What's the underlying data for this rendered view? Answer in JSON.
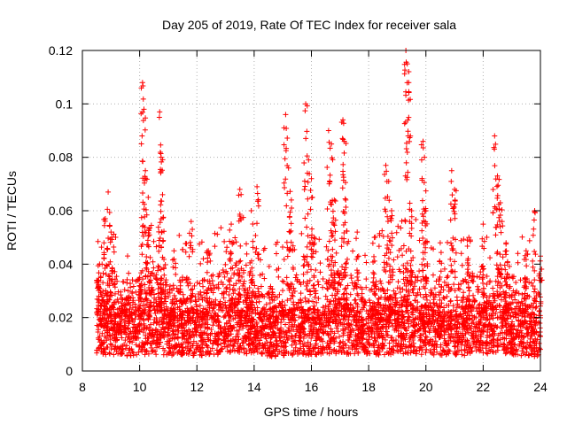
{
  "chart_data": {
    "type": "scatter",
    "title": "Day 205 of 2019, Rate Of TEC Index for receiver sala",
    "xlabel": "GPS time / hours",
    "ylabel": "ROTI / TECUs",
    "xlim": [
      8,
      24
    ],
    "ylim": [
      0,
      0.12
    ],
    "xticks": [
      8,
      10,
      12,
      14,
      16,
      18,
      20,
      22,
      24
    ],
    "xtick_labels": [
      "8",
      "10",
      "12",
      "14",
      "16",
      "18",
      "20",
      "22",
      "24"
    ],
    "yticks": [
      0,
      0.02,
      0.04,
      0.06,
      0.08,
      0.1,
      0.12
    ],
    "ytick_labels": [
      "0",
      "0.02",
      "0.04",
      "0.06",
      "0.08",
      "0.1",
      "0.12"
    ],
    "grid": true,
    "marker": "plus",
    "color": "#ff0000",
    "series": [
      {
        "name": "ROTI",
        "baseline": [
          [
            8.5,
            0.018
          ],
          [
            9.0,
            0.017
          ],
          [
            9.5,
            0.016
          ],
          [
            10.0,
            0.017
          ],
          [
            10.5,
            0.018
          ],
          [
            11.0,
            0.016
          ],
          [
            11.5,
            0.017
          ],
          [
            12.0,
            0.016
          ],
          [
            12.5,
            0.017
          ],
          [
            13.0,
            0.018
          ],
          [
            13.5,
            0.02
          ],
          [
            14.0,
            0.016
          ],
          [
            14.5,
            0.015
          ],
          [
            15.0,
            0.016
          ],
          [
            15.5,
            0.017
          ],
          [
            16.0,
            0.016
          ],
          [
            16.5,
            0.017
          ],
          [
            17.0,
            0.018
          ],
          [
            17.5,
            0.017
          ],
          [
            18.0,
            0.016
          ],
          [
            18.5,
            0.017
          ],
          [
            19.0,
            0.018
          ],
          [
            19.5,
            0.019
          ],
          [
            20.0,
            0.017
          ],
          [
            20.5,
            0.016
          ],
          [
            21.0,
            0.016
          ],
          [
            21.5,
            0.017
          ],
          [
            22.0,
            0.018
          ],
          [
            22.5,
            0.019
          ],
          [
            23.0,
            0.017
          ],
          [
            23.5,
            0.016
          ],
          [
            24.0,
            0.015
          ]
        ],
        "peaks": [
          [
            8.6,
            0.04
          ],
          [
            8.8,
            0.057
          ],
          [
            8.9,
            0.067
          ],
          [
            9.0,
            0.052
          ],
          [
            9.6,
            0.03
          ],
          [
            10.0,
            0.035
          ],
          [
            10.1,
            0.108
          ],
          [
            10.15,
            0.098
          ],
          [
            10.2,
            0.075
          ],
          [
            10.3,
            0.065
          ],
          [
            10.7,
            0.097
          ],
          [
            10.75,
            0.08
          ],
          [
            10.8,
            0.066
          ],
          [
            11.2,
            0.045
          ],
          [
            11.8,
            0.056
          ],
          [
            12.4,
            0.045
          ],
          [
            13.2,
            0.055
          ],
          [
            13.5,
            0.068
          ],
          [
            13.9,
            0.06
          ],
          [
            14.1,
            0.069
          ],
          [
            15.1,
            0.096
          ],
          [
            15.2,
            0.076
          ],
          [
            15.3,
            0.064
          ],
          [
            15.8,
            0.1
          ],
          [
            15.9,
            0.079
          ],
          [
            16.0,
            0.072
          ],
          [
            16.1,
            0.05
          ],
          [
            16.6,
            0.09
          ],
          [
            16.7,
            0.085
          ],
          [
            16.8,
            0.064
          ],
          [
            17.1,
            0.094
          ],
          [
            17.15,
            0.086
          ],
          [
            17.2,
            0.064
          ],
          [
            17.6,
            0.052
          ],
          [
            18.2,
            0.05
          ],
          [
            18.6,
            0.077
          ],
          [
            18.7,
            0.071
          ],
          [
            18.8,
            0.06
          ],
          [
            19.3,
            0.12
          ],
          [
            19.35,
            0.115
          ],
          [
            19.4,
            0.108
          ],
          [
            19.5,
            0.06
          ],
          [
            19.9,
            0.086
          ],
          [
            19.95,
            0.08
          ],
          [
            20.0,
            0.06
          ],
          [
            20.5,
            0.048
          ],
          [
            20.9,
            0.075
          ],
          [
            21.0,
            0.068
          ],
          [
            21.5,
            0.05
          ],
          [
            22.0,
            0.055
          ],
          [
            22.4,
            0.088
          ],
          [
            22.5,
            0.073
          ],
          [
            22.6,
            0.063
          ],
          [
            22.8,
            0.048
          ],
          [
            23.5,
            0.045
          ],
          [
            23.8,
            0.06
          ],
          [
            24.0,
            0.043
          ]
        ]
      }
    ]
  }
}
